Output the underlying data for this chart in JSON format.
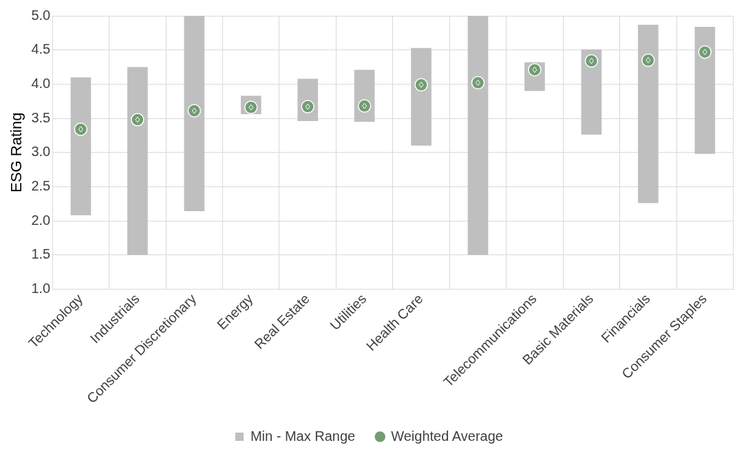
{
  "chart_data": {
    "type": "bar",
    "ylabel": "ESG Rating",
    "categories": [
      "Technology",
      "Industrials",
      "Consumer Discretionary",
      "Energy",
      "Real Estate",
      "Utilities",
      "Health Care",
      null,
      "Telecommunications",
      "Basic Materials",
      "Financials",
      "Consumer Staples"
    ],
    "series": [
      {
        "name": "Min - Max Range",
        "color": "#bfbfbf",
        "base": [
          2.08,
          1.5,
          2.14,
          3.56,
          3.46,
          3.45,
          3.1,
          1.5,
          3.9,
          3.26,
          2.26,
          2.98
        ],
        "values": [
          2.02,
          2.75,
          2.86,
          0.27,
          0.62,
          0.76,
          1.43,
          3.5,
          0.42,
          1.25,
          2.61,
          1.86
        ]
      },
      {
        "name": "Weighted Average",
        "type": "scatter",
        "color": "#739c73",
        "marker": "circle",
        "values": [
          3.34,
          3.48,
          3.61,
          3.66,
          3.67,
          3.68,
          3.99,
          4.02,
          4.21,
          4.34,
          4.35,
          4.47
        ]
      }
    ],
    "ylim": [
      1,
      5
    ],
    "yticks": [
      {
        "value": 1,
        "label": "1.0"
      },
      {
        "value": 1.5,
        "label": "1.5"
      },
      {
        "value": 2,
        "label": "2.0"
      },
      {
        "value": 2.5,
        "label": "2.5"
      },
      {
        "value": 3,
        "label": "3.0"
      },
      {
        "value": 3.5,
        "label": "3.5"
      },
      {
        "value": 4,
        "label": "4.0"
      },
      {
        "value": 4.5,
        "label": "4.5"
      },
      {
        "value": 5,
        "label": "5.0"
      }
    ],
    "grid": true,
    "legend": "bottom"
  }
}
